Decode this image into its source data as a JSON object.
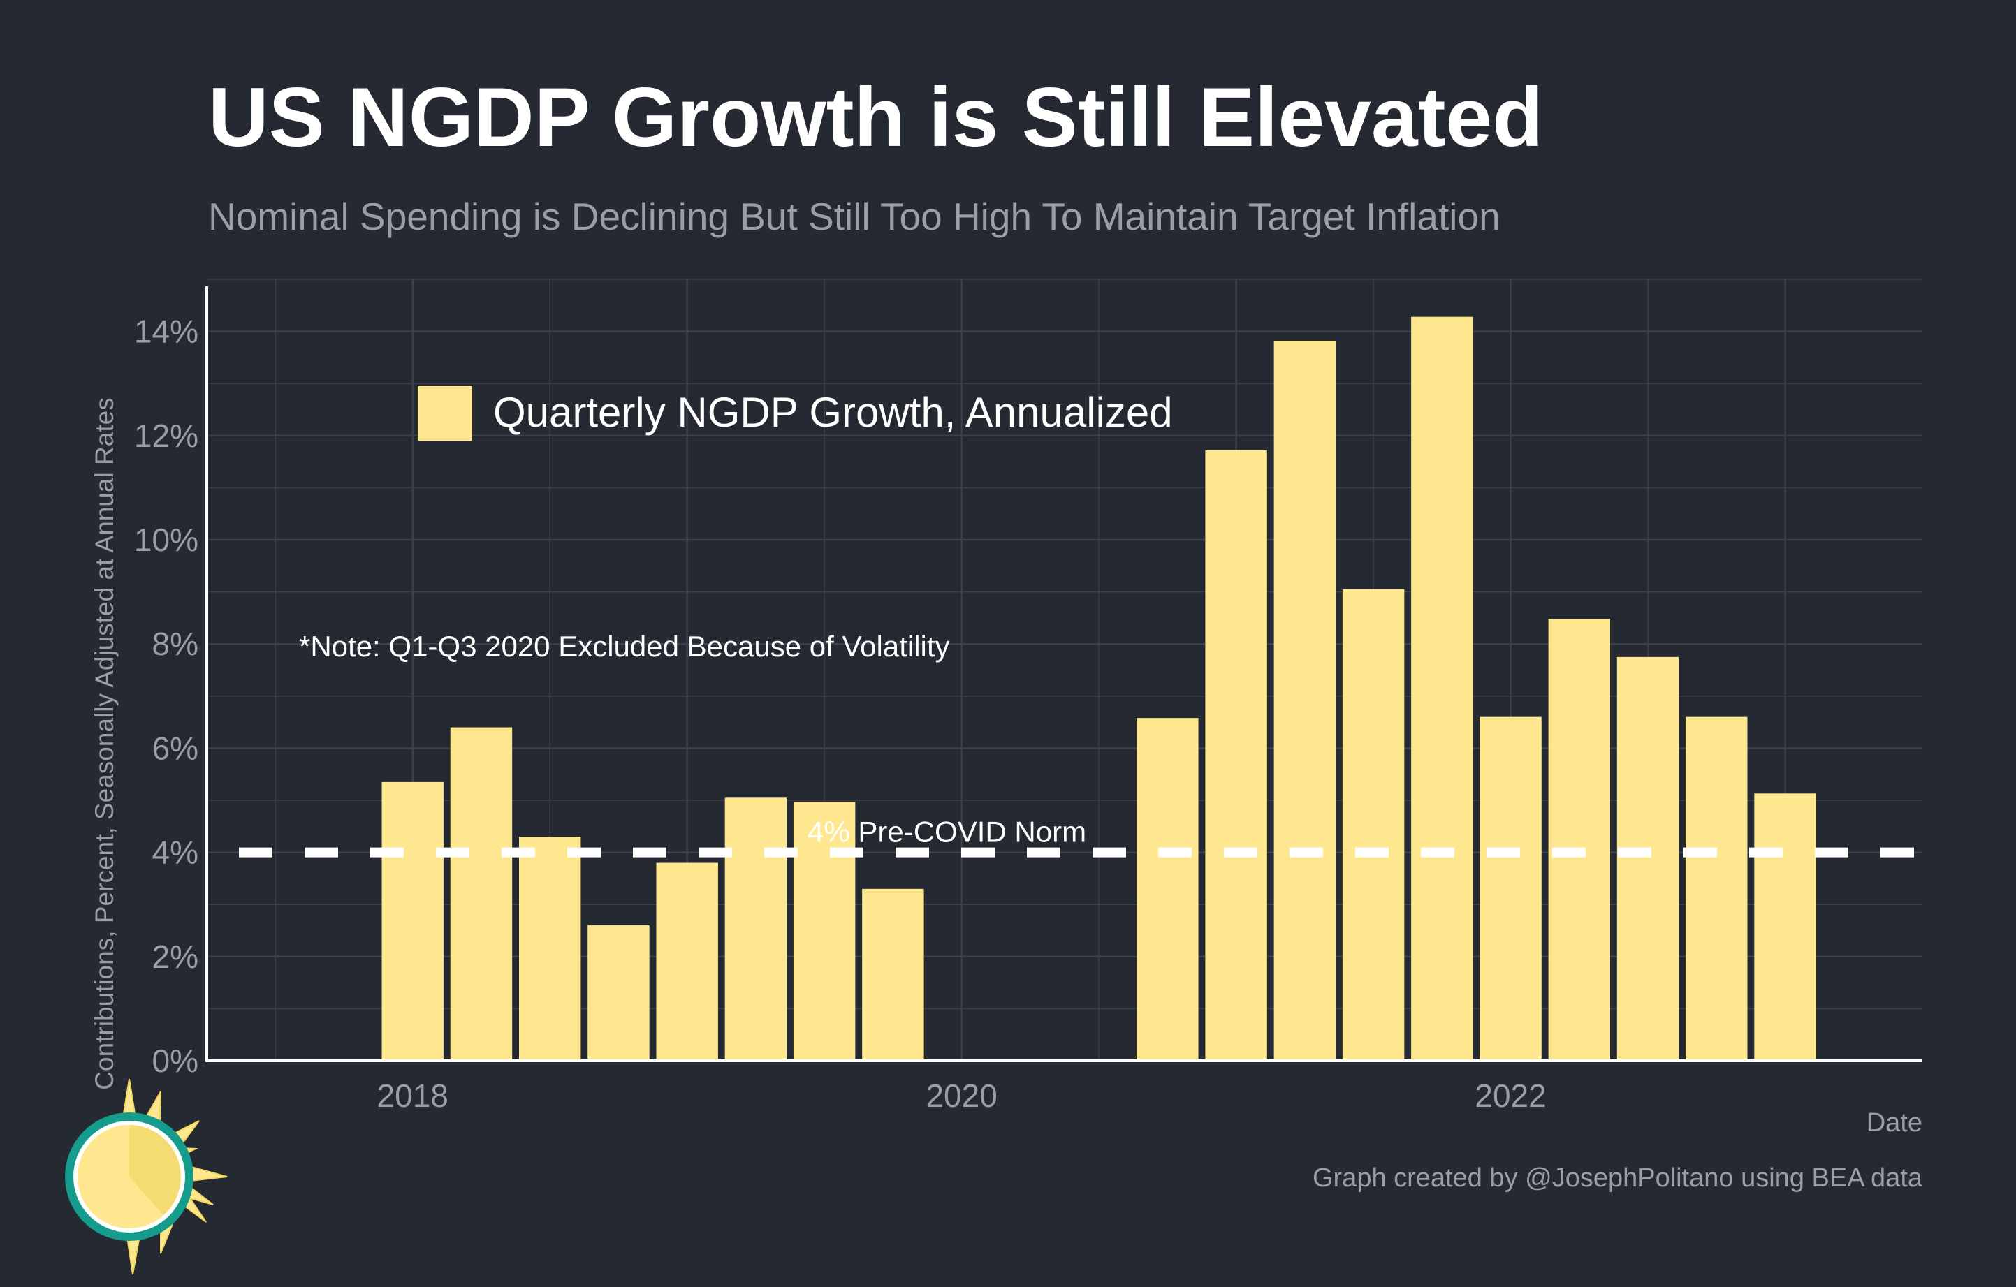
{
  "colors": {
    "background": "#252932",
    "bar": "#fee78f",
    "grid": "#3c4049",
    "axis": "#ffffff",
    "muted_text": "#9a9ea6",
    "reference_line": "#ffffff"
  },
  "header": {
    "title": "US NGDP Growth is Still Elevated",
    "subtitle": "Nominal Spending is Declining But Still Too High To Maintain Target Inflation"
  },
  "footer": {
    "caption": "Graph created by @JosephPolitano using BEA data",
    "logo_icon": "sun-logo-icon"
  },
  "chart_data": {
    "type": "bar",
    "title": "US NGDP Growth is Still Elevated",
    "subtitle": "Nominal Spending is Declining But Still Too High To Maintain Target Inflation",
    "xlabel": "Date",
    "ylabel": "Contributions, Percent, Seasonally Adjusted at Annual Rates",
    "ylim": [
      0,
      15
    ],
    "xlim": [
      2017.25,
      2023.5
    ],
    "y_ticks": [
      0,
      2,
      4,
      6,
      8,
      10,
      12,
      14
    ],
    "y_tick_labels": [
      "0%",
      "2%",
      "4%",
      "6%",
      "8%",
      "10%",
      "12%",
      "14%"
    ],
    "x_ticks": [
      2018,
      2020,
      2022
    ],
    "x_tick_labels": [
      "2018",
      "2020",
      "2022"
    ],
    "grid": true,
    "legend": {
      "position": "top-left",
      "entries": [
        "Quarterly NGDP Growth, Annualized"
      ]
    },
    "series": [
      {
        "name": "Quarterly NGDP Growth, Annualized",
        "quarters": [
          "2018 Q1",
          "2018 Q2",
          "2018 Q3",
          "2018 Q4",
          "2019 Q1",
          "2019 Q2",
          "2019 Q3",
          "2019 Q4",
          "2020 Q4",
          "2021 Q1",
          "2021 Q2",
          "2021 Q3",
          "2021 Q4",
          "2022 Q1",
          "2022 Q2",
          "2022 Q3",
          "2022 Q4",
          "2023 Q1"
        ],
        "x": [
          2018.0,
          2018.25,
          2018.5,
          2018.75,
          2019.0,
          2019.25,
          2019.5,
          2019.75,
          2020.75,
          2021.0,
          2021.25,
          2021.5,
          2021.75,
          2022.0,
          2022.25,
          2022.5,
          2022.75,
          2023.0
        ],
        "values": [
          5.35,
          6.4,
          4.3,
          2.6,
          3.8,
          5.05,
          4.97,
          3.3,
          6.58,
          11.72,
          13.82,
          9.05,
          14.28,
          6.6,
          8.48,
          7.75,
          6.6,
          5.13
        ]
      }
    ],
    "reference_lines": [
      {
        "y": 4,
        "label": "4% Pre-COVID Norm",
        "style": "dashed"
      }
    ],
    "annotations": [
      {
        "text": "*Note: Q1-Q3 2020 Excluded Because of Volatility",
        "x": 2017.6,
        "y": 8
      }
    ]
  }
}
